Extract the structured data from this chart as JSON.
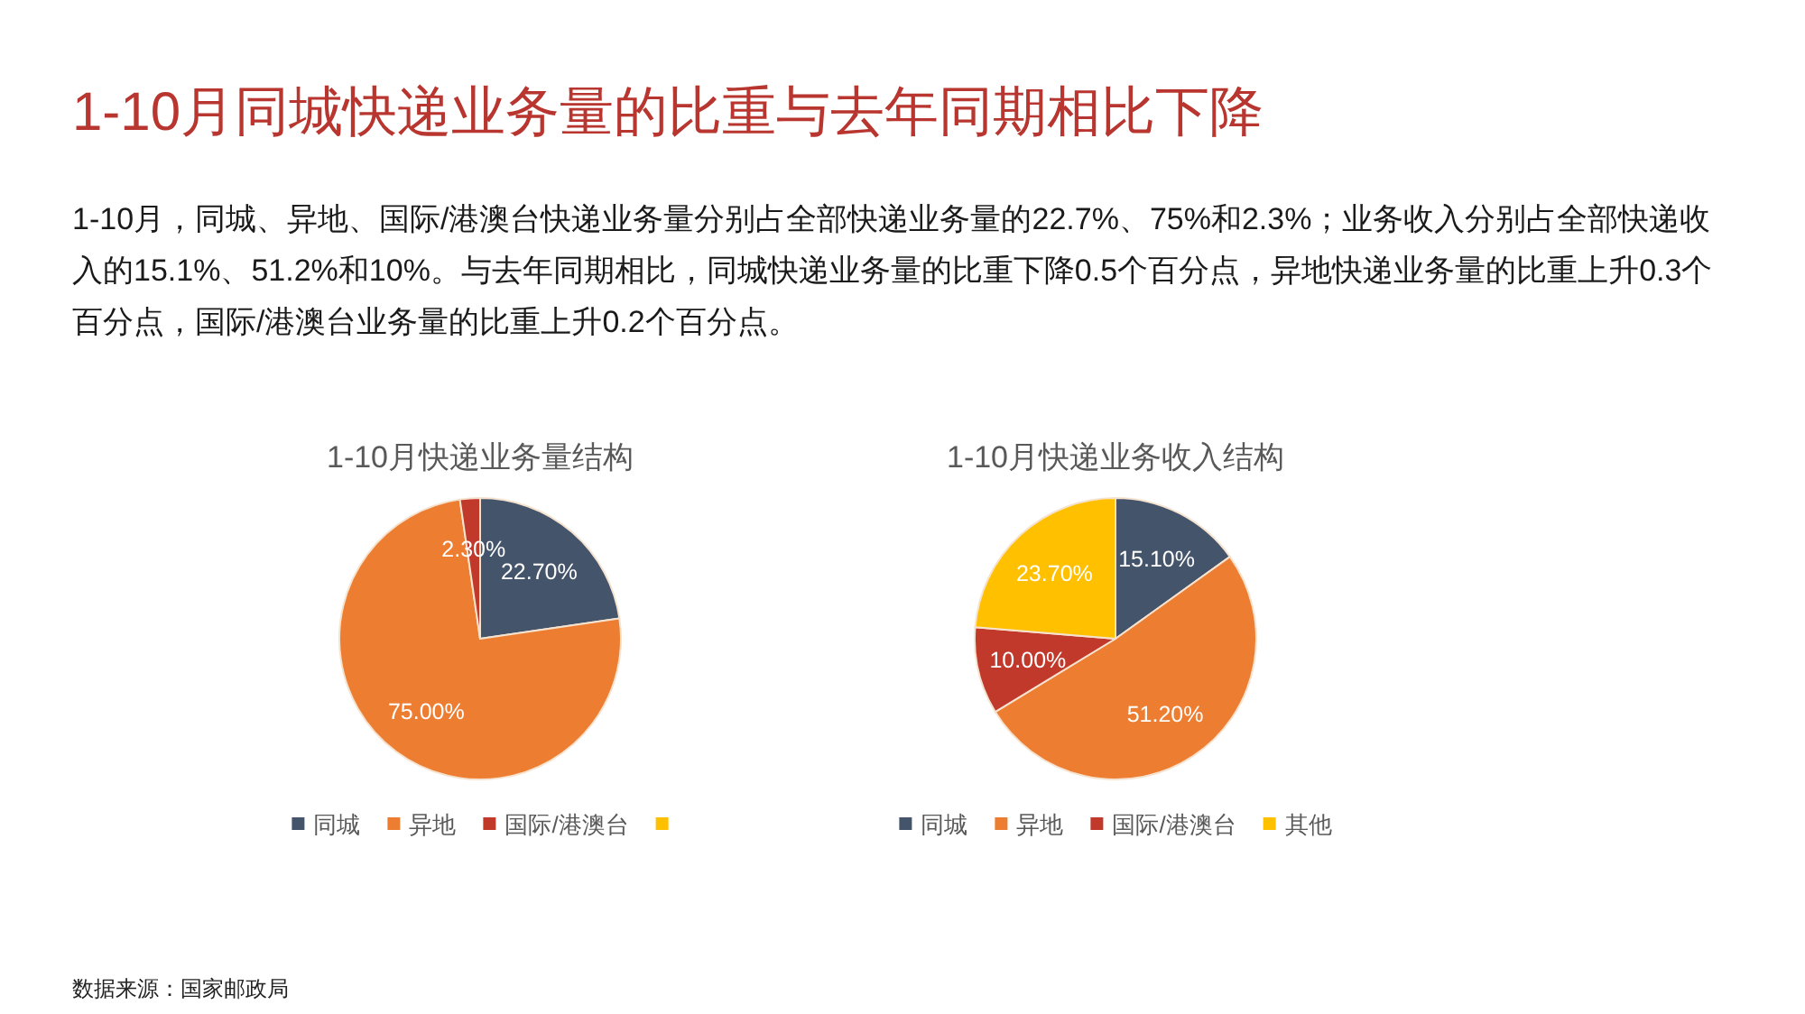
{
  "chart_data": [
    {
      "type": "other",
      "title": "1-10月同城快递业务量的比重与去年同期相比下降",
      "subtitle": "1-10月，同城、异地、国际/港澳台快递业务量分别占全部快递业务量的22.7%、75%和2.3%；业务收入分别占全部快递收入的15.1%、51.2%和10%。与去年同期相比，同城快递业务量的比重下降0.5个百分点，异地快递业务量的比重上升0.3个百分点，国际/港澳台业务量的比重上升0.2个百分点。",
      "annotations": [
        "数据来源：国家邮政局"
      ]
    },
    {
      "type": "pie",
      "title": "1-10月快递业务量结构",
      "categories": [
        "同城",
        "异地",
        "国际/港澳台",
        null
      ],
      "values": [
        22.7,
        75,
        2.3,
        0
      ],
      "colors": [
        "#44546a",
        "#ed7d31",
        "#c0392b",
        "#ffc000"
      ],
      "value_labels": [
        "22.70%",
        "75.00%",
        "2.30%",
        null
      ],
      "legend": "bottom"
    },
    {
      "type": "pie",
      "title": "1-10月快递业务收入结构",
      "categories": [
        "同城",
        "异地",
        "国际/港澳台",
        "其他"
      ],
      "values": [
        15.1,
        51.2,
        10,
        23.7
      ],
      "colors": [
        "#44546a",
        "#ed7d31",
        "#c0392b",
        "#ffc000"
      ],
      "value_labels": [
        "15.10%",
        "51.20%",
        "10.00%",
        "23.70%"
      ],
      "legend": "bottom"
    }
  ]
}
